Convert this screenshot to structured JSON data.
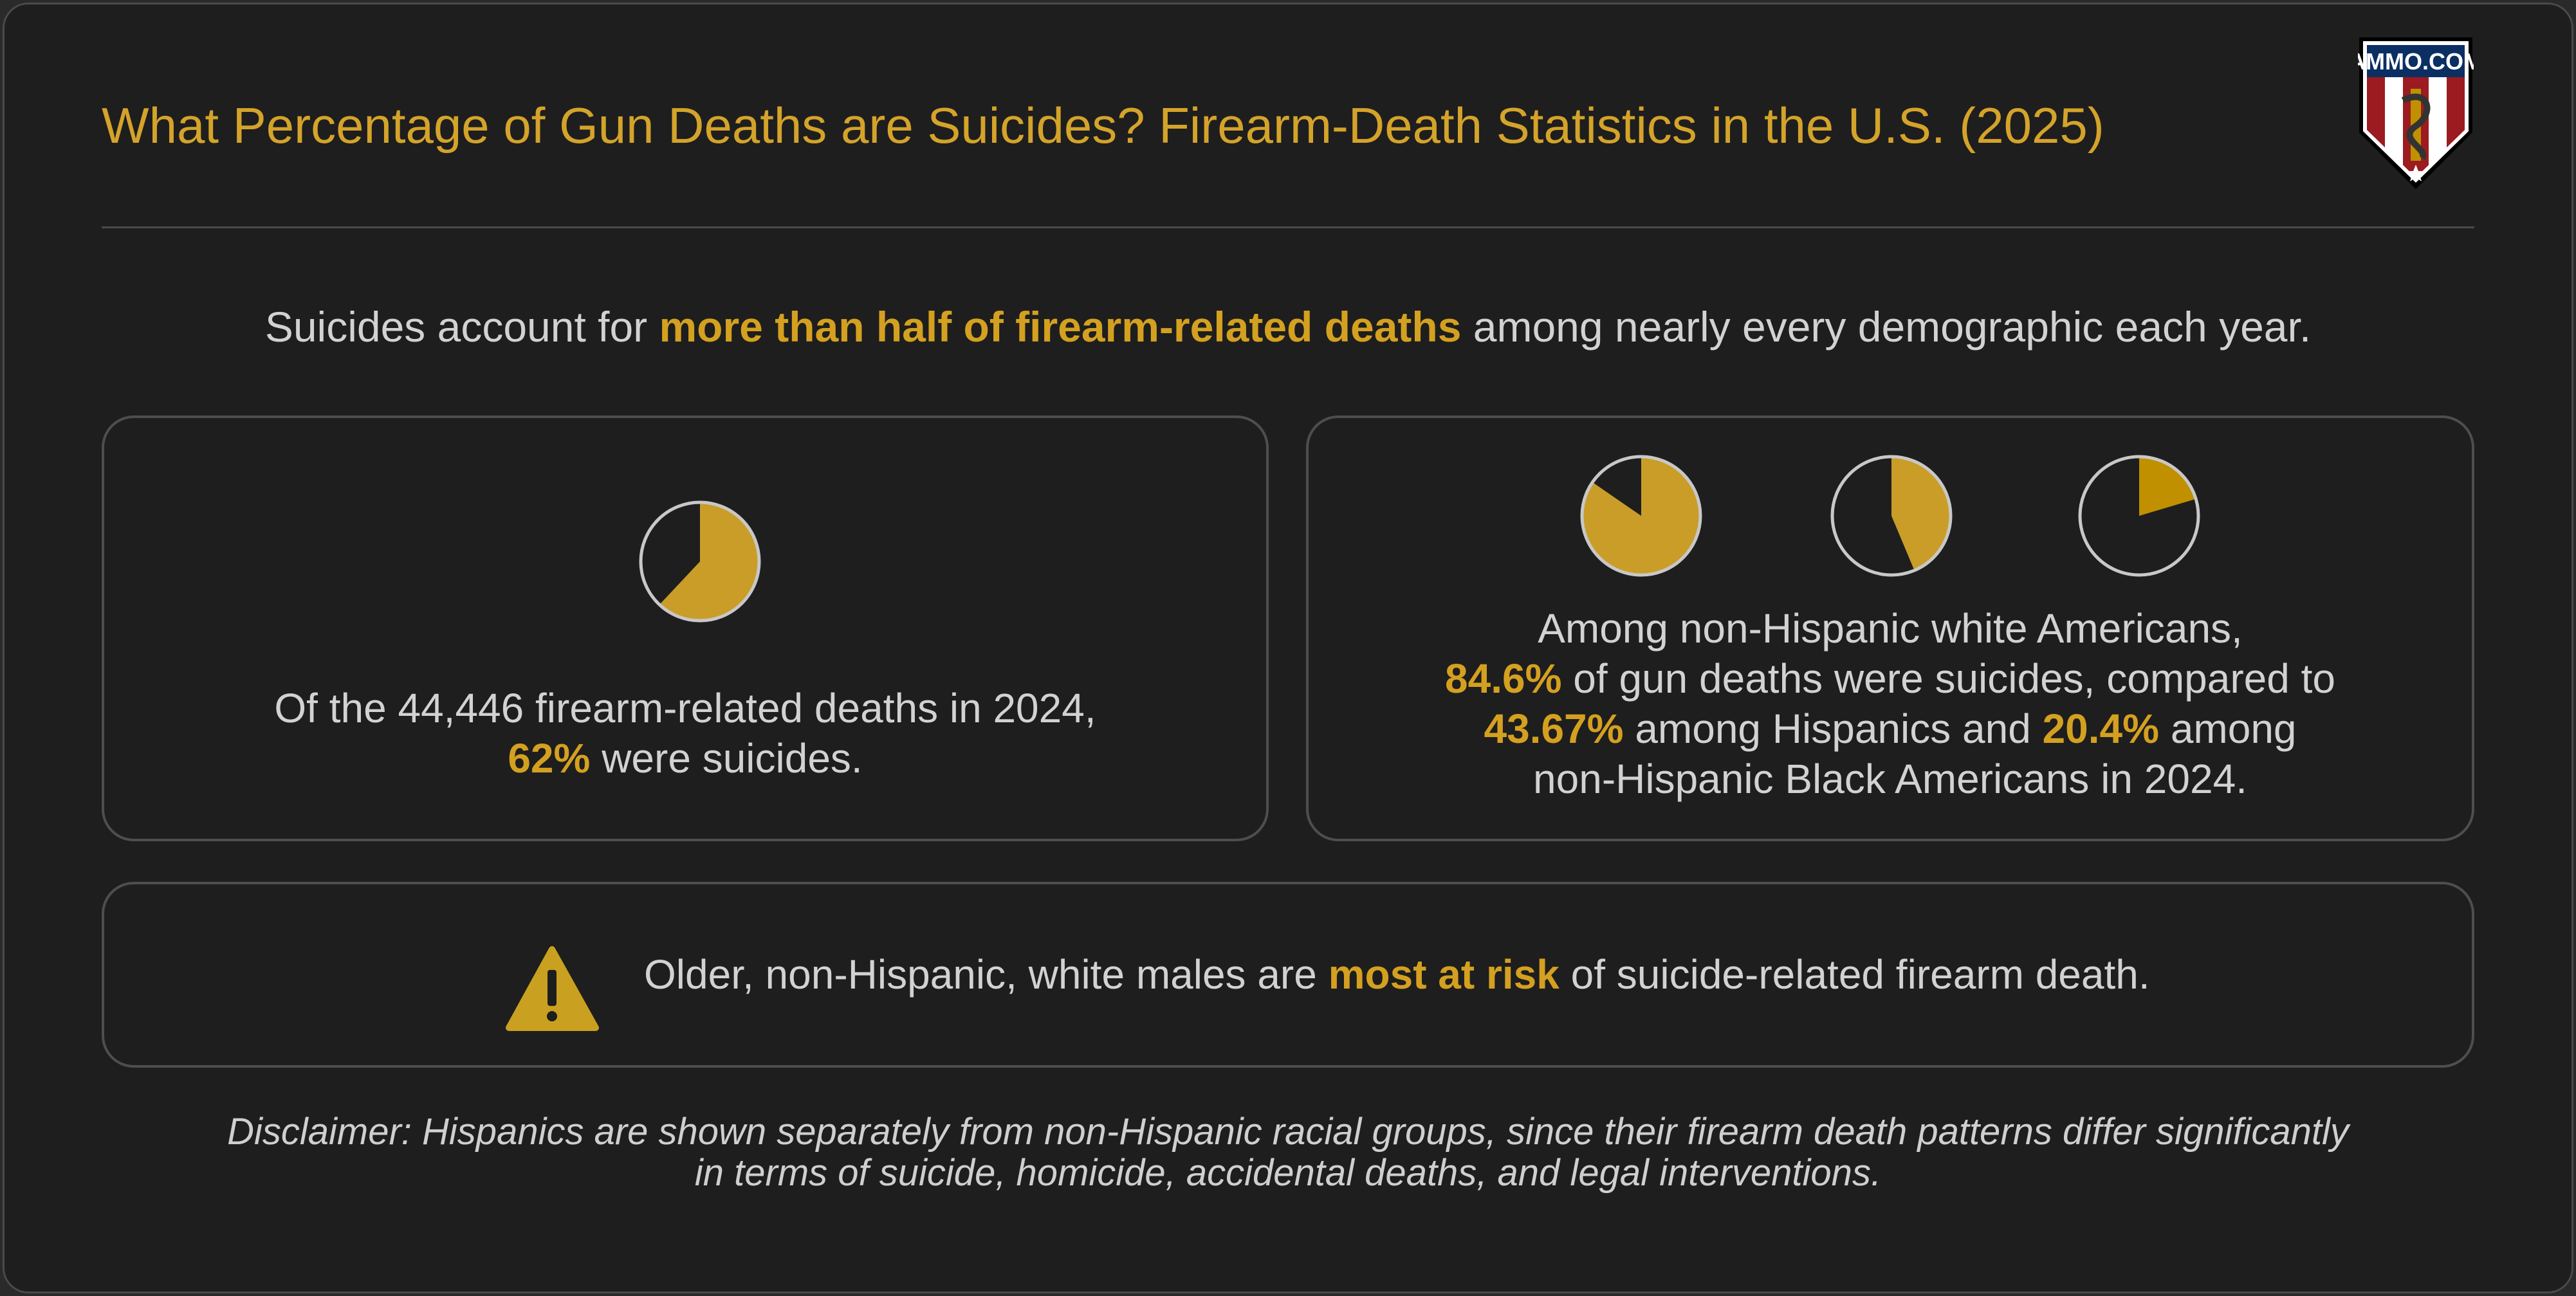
{
  "header": {
    "title": "What Percentage of Gun Deaths are Suicides? Firearm-Death Statistics in the U.S. (2025)",
    "logo_text": "AMMO.COM"
  },
  "subtitle": {
    "before": "Suicides account for ",
    "highlight": "more than half of firearm-related deaths",
    "after": " among nearly every demographic each year."
  },
  "left_panel": {
    "line1": "Of the 44,446 firearm-related deaths in 2024,",
    "line2_highlight": "62%",
    "line2_rest": " were suicides."
  },
  "right_panel": {
    "line1": "Among non-Hispanic white Americans,",
    "line2_highlight": "84.6%",
    "line2_rest": " of gun deaths were suicides, compared to",
    "line3_h1": "43.67%",
    "line3_mid": " among Hispanics and ",
    "line3_h2": "20.4%",
    "line3_rest": " among",
    "line4": "non-Hispanic Black Americans in 2024."
  },
  "bottom_panel": {
    "icon": "warning-icon",
    "before": "Older, non-Hispanic, white males are ",
    "highlight": "most at risk",
    "after": " of suicide-related firearm death."
  },
  "disclaimer": {
    "line1": "Disclaimer: Hispanics are shown separately from non-Hispanic racial groups, since their firearm death patterns differ significantly",
    "line2": "in terms of suicide, homicide, accidental deaths, and legal interventions."
  },
  "colors": {
    "accent": "#d4a32a",
    "pie_fill": "#c99d28",
    "pie_fill_alt": "#c09000",
    "pie_outline": "#c8c8c8",
    "background": "#1e1e1e"
  },
  "chart_data": [
    {
      "type": "pie",
      "unit": "%",
      "values": [
        62
      ],
      "description_label": "Of the 44,446 firearm-related deaths in 2024, 62% were suicides."
    },
    {
      "type": "pie",
      "unit": "%",
      "values": [
        84.6
      ]
    },
    {
      "type": "pie",
      "unit": "%",
      "values": [
        43.67
      ]
    },
    {
      "type": "pie",
      "unit": "%",
      "values": [
        20.4
      ]
    }
  ]
}
